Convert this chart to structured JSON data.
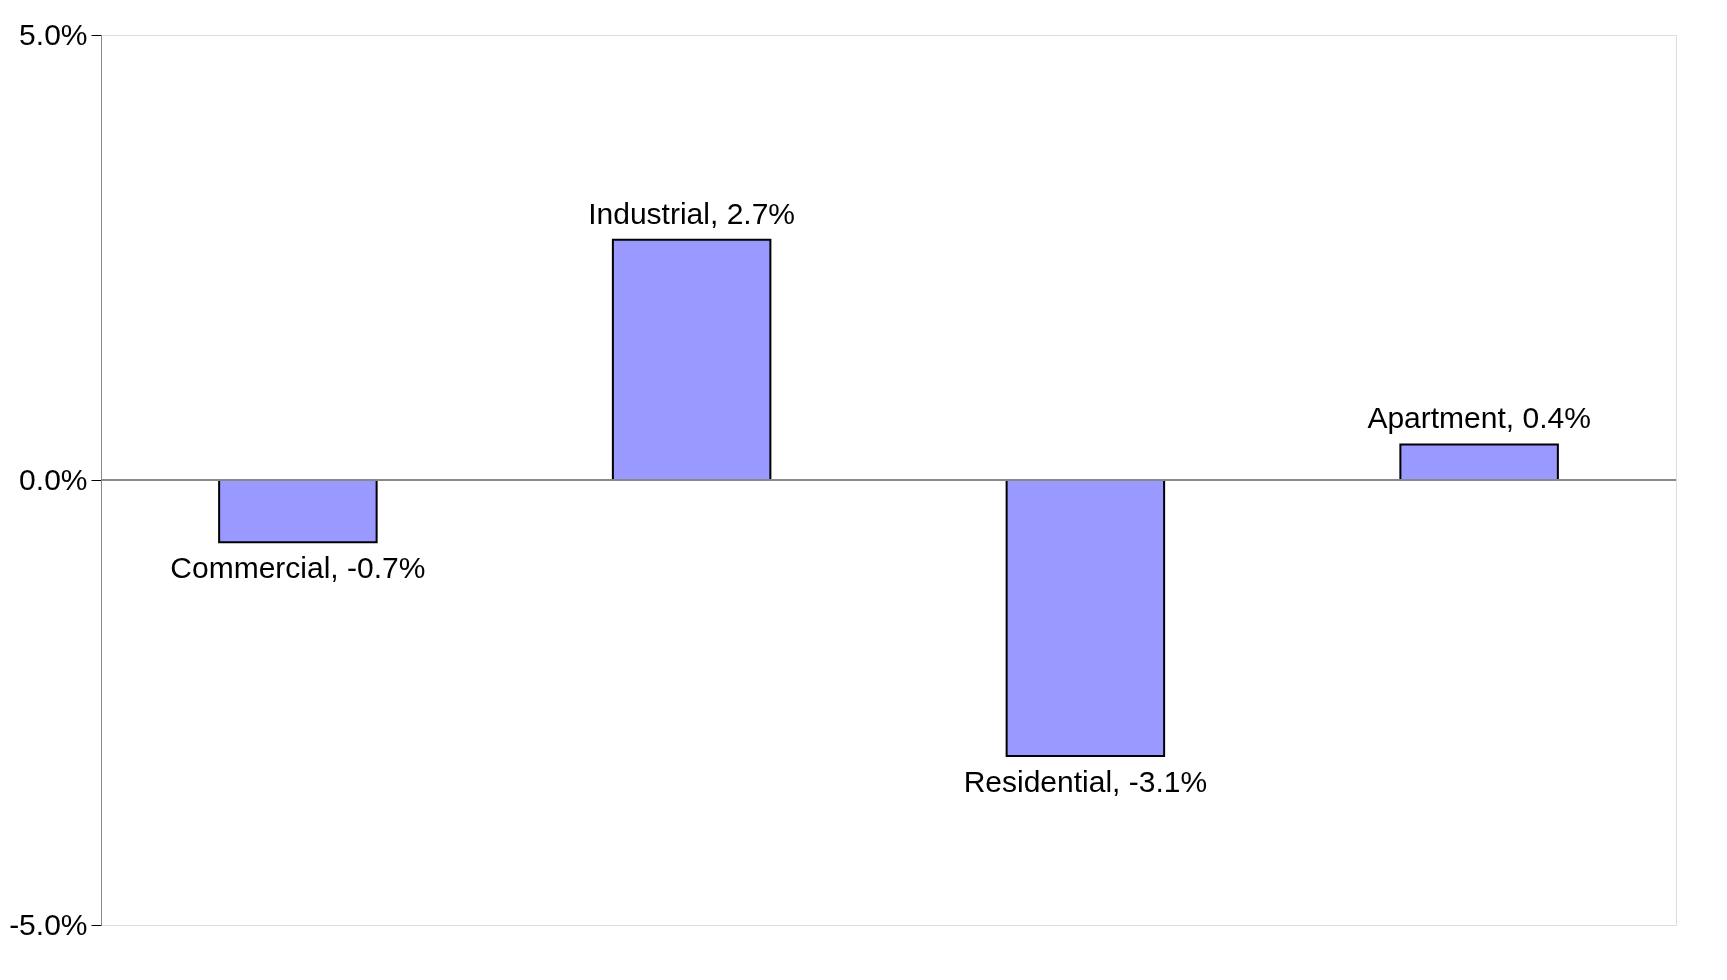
{
  "chart_data": {
    "type": "bar",
    "categories": [
      null,
      null,
      null,
      null
    ],
    "values": [
      -0.7,
      2.7,
      -3.1,
      0.4
    ],
    "value_labels": [
      "Commercial, -0.7%",
      "Industrial, 2.7%",
      "Residential, -3.1%",
      "Apartment, 0.4%"
    ],
    "color": "#9999ff",
    "ylim": [
      -5.0,
      5.0
    ],
    "yticks": [
      {
        "value": -5.0,
        "label": "-5.0%"
      },
      {
        "value": 0.0,
        "label": "0.0%"
      },
      {
        "value": 5.0,
        "label": "5.0%"
      }
    ],
    "ref_lines": [
      {
        "axis": "y",
        "value": 0.0,
        "color": "#888888"
      }
    ],
    "tick_labels": "y"
  }
}
